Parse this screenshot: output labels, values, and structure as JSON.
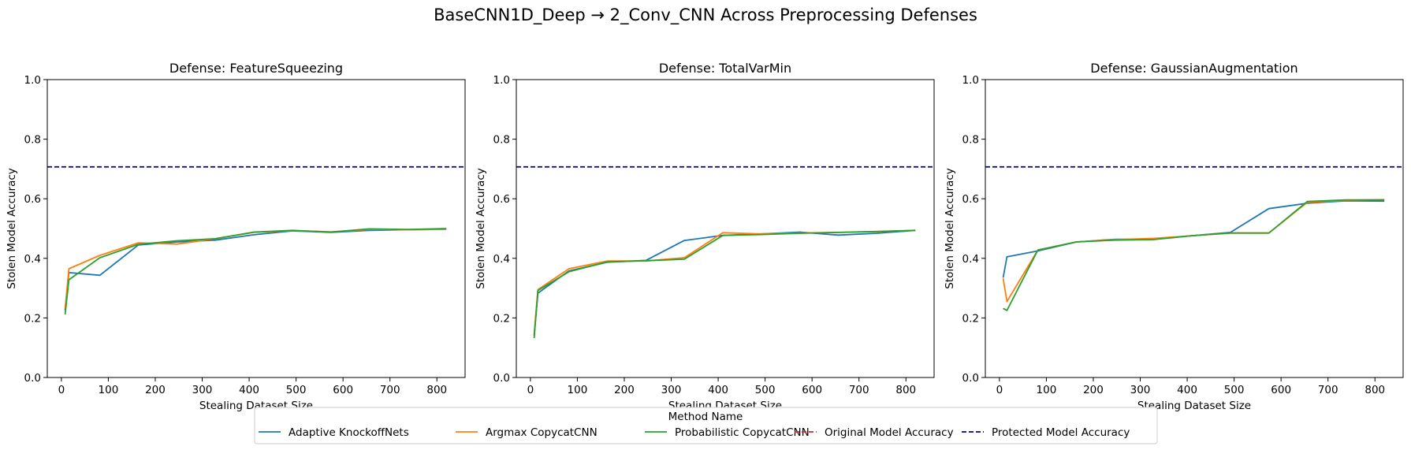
{
  "figure": {
    "suptitle": "BaseCNN1D_Deep → 2_Conv_CNN Across Preprocessing Defenses"
  },
  "legend": {
    "title": "Method Name",
    "placement": "bottom-center",
    "entries": [
      {
        "label": "Adaptive KnockoffNets",
        "color": "#1f77b4",
        "style": "solid"
      },
      {
        "label": "Argmax CopycatCNN",
        "color": "#ff7f0e",
        "style": "solid"
      },
      {
        "label": "Probabilistic CopycatCNN",
        "color": "#2ca02c",
        "style": "solid"
      },
      {
        "label": "Original Model Accuracy",
        "color": "#d62728",
        "style": "dashed"
      },
      {
        "label": "Protected Model Accuracy",
        "color": "#00008b",
        "style": "dashed"
      }
    ]
  },
  "chart_data": [
    {
      "type": "line",
      "title": "Defense: FeatureSqueezing",
      "xlabel": "Stealing Dataset Size",
      "ylabel": "Stolen Model Accuracy",
      "xlim": [
        -30,
        860
      ],
      "ylim": [
        0,
        1
      ],
      "xticks": [
        "0",
        "100",
        "200",
        "300",
        "400",
        "500",
        "600",
        "700",
        "800"
      ],
      "yticks": [
        "0.0",
        "0.2",
        "0.4",
        "0.6",
        "0.8",
        "1.0"
      ],
      "grid": false,
      "hlines": [
        {
          "name": "Protected Model Accuracy",
          "y": 0.707,
          "color": "#00008b",
          "style": "dashed"
        }
      ],
      "series": [
        {
          "name": "Adaptive KnockoffNets",
          "color": "#1f77b4",
          "x": [
            8,
            16,
            82,
            164,
            246,
            328,
            410,
            492,
            574,
            656,
            738,
            820
          ],
          "y": [
            0.225,
            0.352,
            0.343,
            0.445,
            0.455,
            0.461,
            0.479,
            0.492,
            0.487,
            0.494,
            0.496,
            0.498
          ]
        },
        {
          "name": "Argmax CopycatCNN",
          "color": "#ff7f0e",
          "x": [
            8,
            16,
            82,
            164,
            246,
            328,
            410,
            492,
            574,
            656,
            738,
            820
          ],
          "y": [
            0.23,
            0.365,
            0.41,
            0.452,
            0.448,
            0.466,
            0.487,
            0.493,
            0.489,
            0.497,
            0.496,
            0.497
          ]
        },
        {
          "name": "Probabilistic CopycatCNN",
          "color": "#2ca02c",
          "x": [
            8,
            16,
            82,
            164,
            246,
            328,
            410,
            492,
            574,
            656,
            738,
            820
          ],
          "y": [
            0.212,
            0.328,
            0.402,
            0.447,
            0.459,
            0.466,
            0.488,
            0.494,
            0.488,
            0.499,
            0.497,
            0.5
          ]
        }
      ]
    },
    {
      "type": "line",
      "title": "Defense: TotalVarMin",
      "xlabel": "Stealing Dataset Size",
      "ylabel": "Stolen Model Accuracy",
      "xlim": [
        -30,
        860
      ],
      "ylim": [
        0,
        1
      ],
      "xticks": [
        "0",
        "100",
        "200",
        "300",
        "400",
        "500",
        "600",
        "700",
        "800"
      ],
      "yticks": [
        "0.0",
        "0.2",
        "0.4",
        "0.6",
        "0.8",
        "1.0"
      ],
      "grid": false,
      "hlines": [
        {
          "name": "Protected Model Accuracy",
          "y": 0.707,
          "color": "#00008b",
          "style": "dashed"
        }
      ],
      "series": [
        {
          "name": "Adaptive KnockoffNets",
          "color": "#1f77b4",
          "x": [
            8,
            16,
            82,
            164,
            246,
            328,
            410,
            492,
            574,
            656,
            738,
            820
          ],
          "y": [
            0.14,
            0.283,
            0.358,
            0.387,
            0.393,
            0.46,
            0.477,
            0.482,
            0.488,
            0.478,
            0.484,
            0.494
          ]
        },
        {
          "name": "Argmax CopycatCNN",
          "color": "#ff7f0e",
          "x": [
            8,
            16,
            82,
            164,
            246,
            328,
            410,
            492,
            574,
            656,
            738,
            820
          ],
          "y": [
            0.145,
            0.295,
            0.365,
            0.391,
            0.391,
            0.402,
            0.486,
            0.482,
            0.485,
            0.487,
            0.49,
            0.494
          ]
        },
        {
          "name": "Probabilistic CopycatCNN",
          "color": "#2ca02c",
          "x": [
            8,
            16,
            82,
            164,
            246,
            328,
            410,
            492,
            574,
            656,
            738,
            820
          ],
          "y": [
            0.132,
            0.292,
            0.355,
            0.388,
            0.392,
            0.397,
            0.477,
            0.48,
            0.484,
            0.487,
            0.49,
            0.494
          ]
        }
      ]
    },
    {
      "type": "line",
      "title": "Defense: GaussianAugmentation",
      "xlabel": "Stealing Dataset Size",
      "ylabel": "Stolen Model Accuracy",
      "xlim": [
        -30,
        860
      ],
      "ylim": [
        0,
        1
      ],
      "xticks": [
        "0",
        "100",
        "200",
        "300",
        "400",
        "500",
        "600",
        "700",
        "800"
      ],
      "yticks": [
        "0.0",
        "0.2",
        "0.4",
        "0.6",
        "0.8",
        "1.0"
      ],
      "grid": false,
      "hlines": [
        {
          "name": "Protected Model Accuracy",
          "y": 0.707,
          "color": "#00008b",
          "style": "dashed"
        }
      ],
      "series": [
        {
          "name": "Adaptive KnockoffNets",
          "color": "#1f77b4",
          "x": [
            8,
            16,
            82,
            164,
            246,
            328,
            410,
            492,
            574,
            656,
            738,
            820
          ],
          "y": [
            0.335,
            0.405,
            0.425,
            0.455,
            0.464,
            0.464,
            0.476,
            0.487,
            0.567,
            0.585,
            0.593,
            0.592
          ]
        },
        {
          "name": "Argmax CopycatCNN",
          "color": "#ff7f0e",
          "x": [
            8,
            16,
            82,
            164,
            246,
            328,
            410,
            492,
            574,
            656,
            738,
            820
          ],
          "y": [
            0.333,
            0.255,
            0.428,
            0.455,
            0.463,
            0.467,
            0.476,
            0.485,
            0.485,
            0.588,
            0.595,
            0.597
          ]
        },
        {
          "name": "Probabilistic CopycatCNN",
          "color": "#2ca02c",
          "x": [
            8,
            16,
            82,
            164,
            246,
            328,
            410,
            492,
            574,
            656,
            738,
            820
          ],
          "y": [
            0.232,
            0.225,
            0.428,
            0.455,
            0.461,
            0.463,
            0.476,
            0.485,
            0.485,
            0.591,
            0.596,
            0.596
          ]
        }
      ]
    }
  ]
}
